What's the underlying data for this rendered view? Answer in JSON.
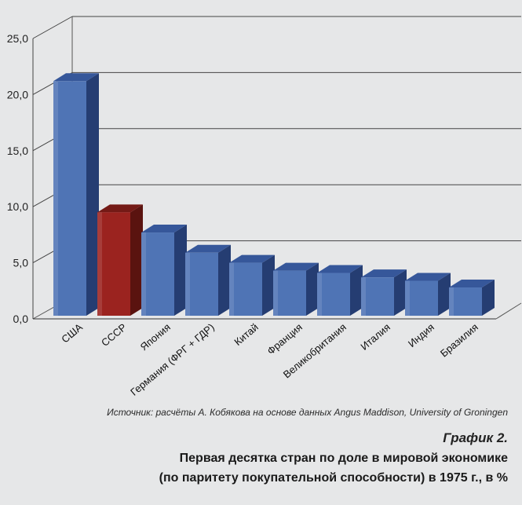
{
  "chart_data": {
    "type": "bar",
    "style": "3d",
    "categories": [
      "США",
      "СССР",
      "Япония",
      "Германия (ФРГ + ГДР)",
      "Китай",
      "Франция",
      "Великобритания",
      "Италия",
      "Индия",
      "Бразилия"
    ],
    "values": [
      21.2,
      9.5,
      7.7,
      5.9,
      5.0,
      4.3,
      4.1,
      3.7,
      3.4,
      2.8
    ],
    "ylim": [
      0,
      25
    ],
    "yticks": [
      "0,0",
      "5,0",
      "10,0",
      "15,0",
      "20,0",
      "25,0"
    ],
    "grid": true,
    "legend": "none",
    "colors": {
      "default_front": "#4f74b5",
      "default_top": "#36579a",
      "default_side": "#253d72",
      "highlight_front": "#9b231f",
      "highlight_top": "#741a16",
      "highlight_side": "#5a130f",
      "highlight_index": 1,
      "grid": "#444444"
    }
  },
  "source": "Источник: расчёты А. Кобякова на основе данных Angus Maddison, University of Groningen",
  "caption": {
    "label": "График 2.",
    "title_line1": "Первая десятка стран по доле в мировой экономике",
    "title_line2": "(по паритету покупательной способности) в 1975 г., в %"
  }
}
